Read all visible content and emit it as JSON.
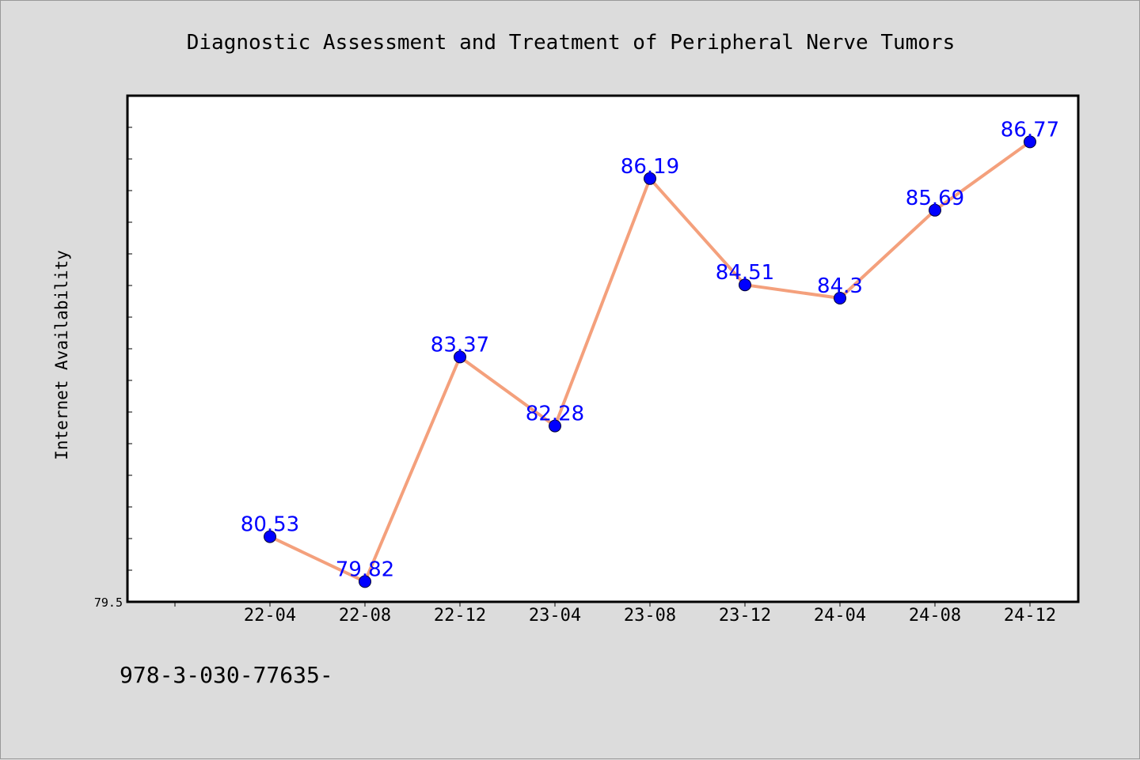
{
  "chart_data": {
    "type": "line",
    "title": "Diagnostic Assessment and Treatment of Peripheral Nerve Tumors",
    "xlabel": "",
    "ylabel": "Internet Availability",
    "categories": [
      "22-04",
      "22-08",
      "22-12",
      "23-04",
      "23-08",
      "23-12",
      "24-04",
      "24-08",
      "24-12"
    ],
    "series": [
      {
        "values": [
          80.53,
          79.82,
          83.37,
          82.28,
          86.19,
          84.51,
          84.3,
          85.69,
          86.77
        ],
        "labels": [
          "80.53",
          "79.82",
          "83.37",
          "82.28",
          "86.19",
          "84.51",
          "84.3",
          "85.69",
          "86.77"
        ]
      }
    ],
    "ylim": [
      79.5,
      87.5
    ],
    "yticks_labeled": [
      "79.5"
    ],
    "grid": false,
    "line_color": "#f4a07c",
    "marker_color": "#0000ff",
    "label_color": "#0000ff"
  },
  "footer": {
    "text": "978-3-030-77635-"
  }
}
